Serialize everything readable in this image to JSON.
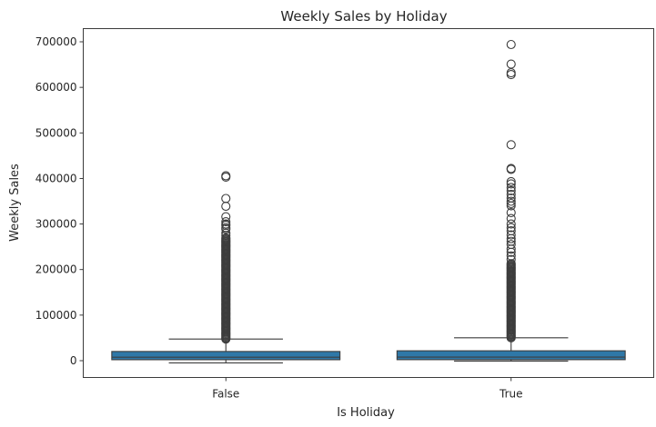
{
  "chart_data": {
    "type": "box",
    "title": "Weekly Sales by Holiday",
    "xlabel": "Is Holiday",
    "ylabel": "Weekly Sales",
    "ylim": [
      -40000,
      728000
    ],
    "yticks": [
      0,
      100000,
      200000,
      300000,
      400000,
      500000,
      600000,
      700000
    ],
    "grid": false,
    "color": "#2f78a8",
    "categories": [
      "False",
      "True"
    ],
    "boxes": [
      {
        "category": "False",
        "whisker_low": -4900,
        "q1": 2100,
        "median": 7600,
        "q3": 20200,
        "whisker_high": 47400,
        "outliers_dense_range": [
          47400,
          270000
        ],
        "outliers": [
          275000,
          280000,
          289000,
          292000,
          297000,
          300000,
          305000,
          316000,
          339000,
          356000,
          403000,
          406000
        ]
      },
      {
        "category": "True",
        "whisker_low": -800,
        "q1": 2200,
        "median": 7900,
        "q3": 21700,
        "whisker_high": 50200,
        "outliers_dense_range": [
          50200,
          215000
        ],
        "outliers": [
          222000,
          230000,
          238000,
          245000,
          255000,
          262000,
          268000,
          276000,
          285000,
          292000,
          300000,
          312000,
          325000,
          340000,
          345000,
          350000,
          357000,
          365000,
          373000,
          380000,
          388000,
          393000,
          420000,
          422000,
          474000,
          628000,
          632000,
          651000,
          694000
        ]
      }
    ]
  }
}
